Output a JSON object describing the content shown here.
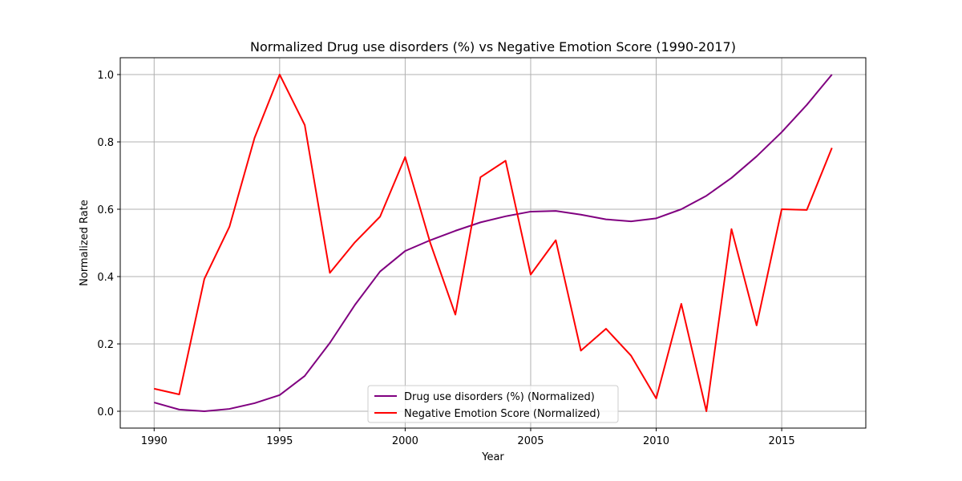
{
  "chart_data": {
    "type": "line",
    "title": "Normalized Drug use disorders (%) vs Negative Emotion Score (1990-2017)",
    "xlabel": "Year",
    "ylabel": "Normalized Rate",
    "xlim": [
      1988.65,
      2018.35
    ],
    "ylim": [
      -0.05,
      1.05
    ],
    "xticks": [
      1990,
      1995,
      2000,
      2005,
      2010,
      2015
    ],
    "yticks": [
      0.0,
      0.2,
      0.4,
      0.6,
      0.8,
      1.0
    ],
    "ytick_labels": [
      "0.0",
      "0.2",
      "0.4",
      "0.6",
      "0.8",
      "1.0"
    ],
    "grid": true,
    "legend_position": "lower center",
    "x": [
      1990,
      1991,
      1992,
      1993,
      1994,
      1995,
      1996,
      1997,
      1998,
      1999,
      2000,
      2001,
      2002,
      2003,
      2004,
      2005,
      2006,
      2007,
      2008,
      2009,
      2010,
      2011,
      2012,
      2013,
      2014,
      2015,
      2016,
      2017
    ],
    "series": [
      {
        "name": "Drug use disorders (%) (Normalized)",
        "color": "#800080",
        "values": [
          0.026,
          0.005,
          0.0,
          0.007,
          0.024,
          0.048,
          0.105,
          0.203,
          0.316,
          0.415,
          0.476,
          0.508,
          0.536,
          0.561,
          0.579,
          0.593,
          0.595,
          0.584,
          0.57,
          0.564,
          0.573,
          0.6,
          0.64,
          0.693,
          0.757,
          0.829,
          0.91,
          1.0
        ]
      },
      {
        "name": "Negative Emotion Score (Normalized)",
        "color": "#ff0000",
        "values": [
          0.067,
          0.05,
          0.393,
          0.548,
          0.812,
          1.0,
          0.85,
          0.411,
          0.502,
          0.578,
          0.755,
          0.5,
          0.287,
          0.695,
          0.744,
          0.406,
          0.508,
          0.18,
          0.245,
          0.165,
          0.038,
          0.319,
          0.0,
          0.541,
          0.255,
          0.6,
          0.598,
          0.782
        ]
      }
    ]
  }
}
